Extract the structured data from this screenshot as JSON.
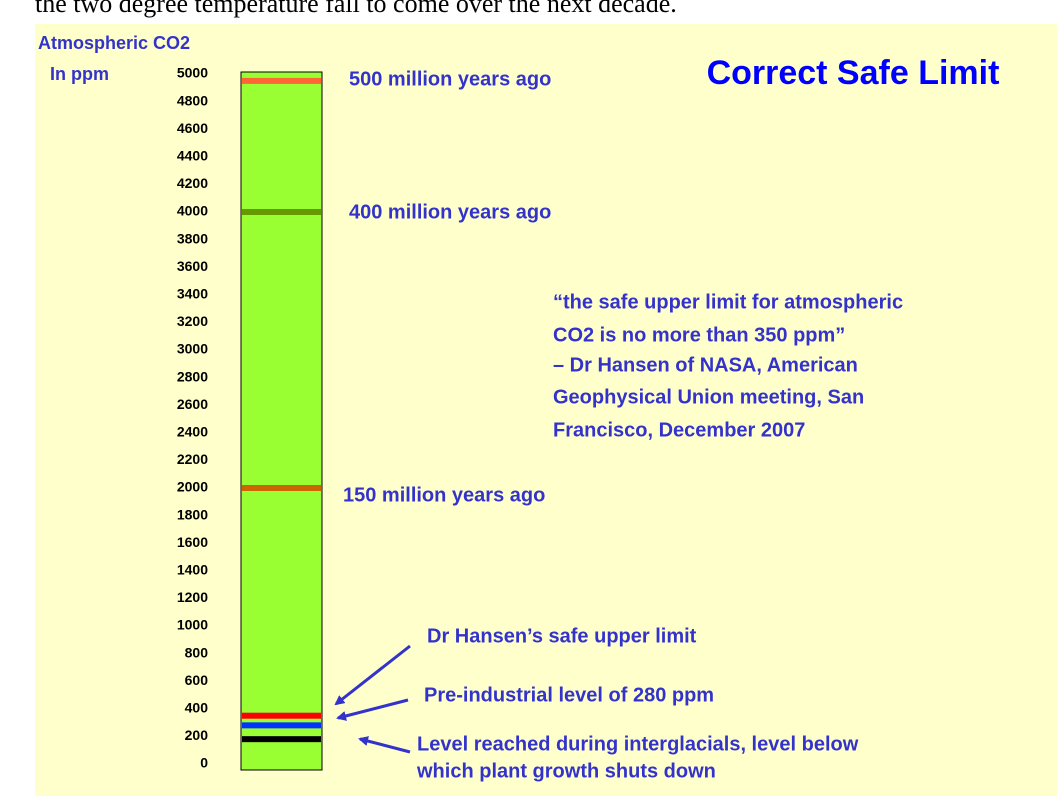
{
  "caption": "the two degree temperature fall to come over the next decade.",
  "chart_data": {
    "type": "scale",
    "title": "Correct Safe Limit",
    "y_label_lines": [
      "Atmospheric CO2",
      "In ppm"
    ],
    "ylim": [
      0,
      5000
    ],
    "yticks": [
      0,
      200,
      400,
      600,
      800,
      1000,
      1200,
      1400,
      1600,
      1800,
      2000,
      2200,
      2400,
      2600,
      2800,
      3000,
      3200,
      3400,
      3600,
      3800,
      4000,
      4200,
      4400,
      4600,
      4800,
      5000
    ],
    "bar_color": "#99ff33",
    "bands": [
      {
        "label": [
          "500 million years ago"
        ],
        "value": 4950,
        "color": "#ff6633"
      },
      {
        "label": [
          "400 million years ago"
        ],
        "value": 4000,
        "color": "#669900"
      },
      {
        "label": [
          "150 million years ago"
        ],
        "value": 2000,
        "color": "#cc6600"
      },
      {
        "label": [
          "Dr Hansen’s safe upper limit"
        ],
        "value": 350,
        "color": "#ff0000"
      },
      {
        "label": [
          "Pre-industrial level of 280 ppm"
        ],
        "value": 280,
        "color": "#0033ff"
      },
      {
        "label": [
          "Level reached during interglacials, level below",
          "which plant growth shuts down"
        ],
        "value": 180,
        "color": "#000000"
      }
    ],
    "quote_lines": [
      "“the safe upper limit for atmospheric",
      "CO2 is no more than 350 ppm”",
      "– Dr Hansen of NASA, American",
      "Geophysical Union meeting, San",
      "Francisco, December 2007"
    ]
  }
}
